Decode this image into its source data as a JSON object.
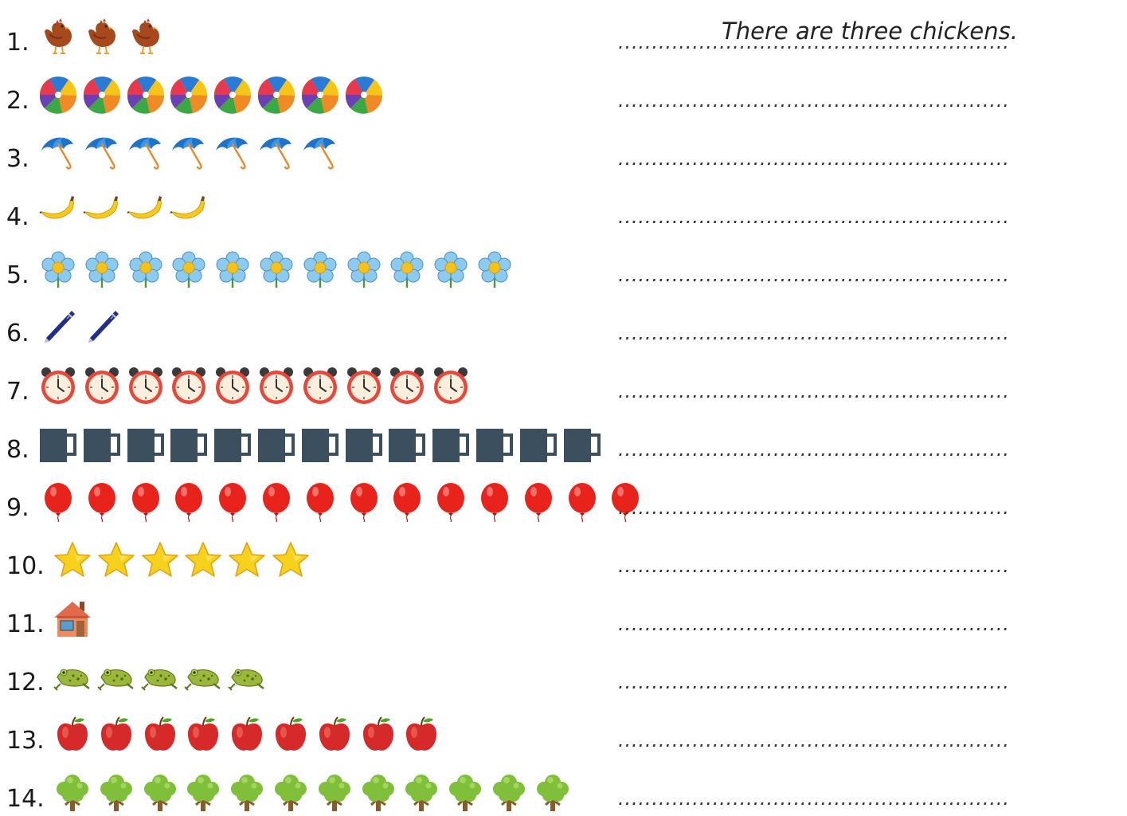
{
  "worksheet": {
    "dots": "..........................................................",
    "rows": [
      {
        "number": "1.",
        "icon": "chicken-icon",
        "count": 3,
        "answer": "There are three chickens."
      },
      {
        "number": "2.",
        "icon": "beach-ball-icon",
        "count": 8,
        "answer": ""
      },
      {
        "number": "3.",
        "icon": "umbrella-icon",
        "count": 7,
        "answer": ""
      },
      {
        "number": "4.",
        "icon": "banana-icon",
        "count": 4,
        "answer": ""
      },
      {
        "number": "5.",
        "icon": "flower-icon",
        "count": 11,
        "answer": ""
      },
      {
        "number": "6.",
        "icon": "pen-icon",
        "count": 2,
        "answer": ""
      },
      {
        "number": "7.",
        "icon": "alarm-clock-icon",
        "count": 10,
        "answer": ""
      },
      {
        "number": "8.",
        "icon": "mug-icon",
        "count": 13,
        "answer": ""
      },
      {
        "number": "9.",
        "icon": "balloon-icon",
        "count": 14,
        "answer": ""
      },
      {
        "number": "10.",
        "icon": "star-icon",
        "count": 6,
        "answer": ""
      },
      {
        "number": "11.",
        "icon": "house-icon",
        "count": 1,
        "answer": ""
      },
      {
        "number": "12.",
        "icon": "frog-icon",
        "count": 5,
        "answer": ""
      },
      {
        "number": "13.",
        "icon": "apple-icon",
        "count": 9,
        "answer": ""
      },
      {
        "number": "14.",
        "icon": "tree-icon",
        "count": 12,
        "answer": ""
      }
    ]
  }
}
